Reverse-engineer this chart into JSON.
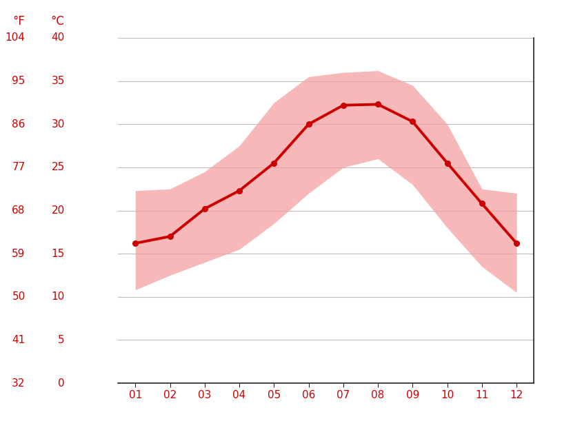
{
  "months": [
    1,
    2,
    3,
    4,
    5,
    6,
    7,
    8,
    9,
    10,
    11,
    12
  ],
  "month_labels": [
    "01",
    "02",
    "03",
    "04",
    "05",
    "06",
    "07",
    "08",
    "09",
    "10",
    "11",
    "12"
  ],
  "avg_temp_c": [
    16.2,
    17.0,
    20.2,
    22.3,
    25.5,
    30.0,
    32.2,
    32.3,
    30.3,
    25.5,
    20.8,
    16.2
  ],
  "max_temp_c": [
    22.3,
    22.5,
    24.5,
    27.5,
    32.5,
    35.5,
    36.0,
    36.2,
    34.5,
    30.0,
    22.5,
    22.0
  ],
  "min_temp_c": [
    10.8,
    12.5,
    14.0,
    15.5,
    18.5,
    22.0,
    25.0,
    26.0,
    23.0,
    18.0,
    13.5,
    10.5
  ],
  "y_ticks_c": [
    0,
    5,
    10,
    15,
    20,
    25,
    30,
    35,
    40
  ],
  "y_ticks_f": [
    32,
    41,
    50,
    59,
    68,
    77,
    86,
    95,
    104
  ],
  "line_color": "#cc0000",
  "fill_color": "#f4a0a0",
  "fill_alpha": 0.75,
  "grid_color": "#bbbbbb",
  "spine_color": "#222222",
  "label_color": "#cc0000",
  "background_color": "#ffffff",
  "ylabel_f": "°F",
  "ylabel_c": "°C",
  "ylim_c": [
    0,
    40
  ],
  "xlim": [
    0.5,
    12.5
  ],
  "line_width": 2.8,
  "marker": "o",
  "marker_size": 5.5,
  "tick_fontsize": 11,
  "unit_fontsize": 12
}
